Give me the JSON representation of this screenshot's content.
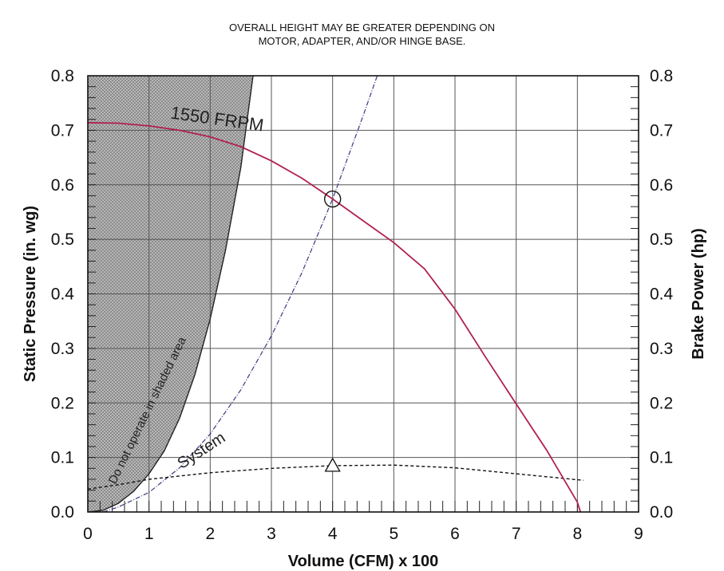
{
  "notes": [
    "OVERALL HEIGHT MAY BE GREATER DEPENDING ON",
    "MOTOR, ADAPTER, AND/OR HINGE BASE."
  ],
  "chart_data": {
    "type": "line",
    "xlabel": "Volume (CFM) x 100",
    "ylabel_left": "Static Pressure (in. wg)",
    "ylabel_right": "Brake Power (hp)",
    "xlim": [
      0,
      9
    ],
    "ylim": [
      0,
      0.8
    ],
    "x_ticks": [
      "0",
      "1",
      "2",
      "3",
      "4",
      "5",
      "6",
      "7",
      "8",
      "9"
    ],
    "y_ticks": [
      "0.0",
      "0.1",
      "0.2",
      "0.3",
      "0.4",
      "0.5",
      "0.6",
      "0.7",
      "0.8"
    ],
    "grid": true,
    "colors": {
      "fan_curve": "#b02050",
      "system": "#3a3a80",
      "power": "#111111",
      "shade": "#a8a8a8"
    },
    "series": [
      {
        "name": "1550 FRPM",
        "points": [
          [
            0,
            0.714
          ],
          [
            0.5,
            0.713
          ],
          [
            1,
            0.708
          ],
          [
            1.5,
            0.7
          ],
          [
            2,
            0.688
          ],
          [
            2.5,
            0.67
          ],
          [
            3,
            0.644
          ],
          [
            3.5,
            0.612
          ],
          [
            4,
            0.574
          ],
          [
            4.5,
            0.534
          ],
          [
            5,
            0.494
          ],
          [
            5.5,
            0.446
          ],
          [
            6,
            0.372
          ],
          [
            6.5,
            0.284
          ],
          [
            7,
            0.198
          ],
          [
            7.5,
            0.113
          ],
          [
            8,
            0.018
          ],
          [
            8.05,
            0
          ]
        ]
      },
      {
        "name": "System",
        "points": [
          [
            0.25,
            0
          ],
          [
            0.5,
            0.009
          ],
          [
            1,
            0.036
          ],
          [
            1.5,
            0.081
          ],
          [
            2,
            0.143
          ],
          [
            2.5,
            0.224
          ],
          [
            3,
            0.323
          ],
          [
            3.5,
            0.439
          ],
          [
            4,
            0.574
          ],
          [
            4.5,
            0.727
          ],
          [
            4.73,
            0.8
          ]
        ]
      },
      {
        "name": "Brake Power",
        "points": [
          [
            0,
            0.042
          ],
          [
            0.5,
            0.05
          ],
          [
            1,
            0.06
          ],
          [
            2,
            0.072
          ],
          [
            3,
            0.08
          ],
          [
            4,
            0.085
          ],
          [
            5,
            0.086
          ],
          [
            6,
            0.081
          ],
          [
            7,
            0.07
          ],
          [
            8.1,
            0.058
          ]
        ]
      },
      {
        "name": "Do not operate boundary",
        "points": [
          [
            0,
            0
          ],
          [
            0.25,
            0.003
          ],
          [
            0.5,
            0.016
          ],
          [
            0.75,
            0.038
          ],
          [
            1,
            0.07
          ],
          [
            1.25,
            0.112
          ],
          [
            1.5,
            0.172
          ],
          [
            1.75,
            0.252
          ],
          [
            2,
            0.354
          ],
          [
            2.25,
            0.48
          ],
          [
            2.5,
            0.632
          ],
          [
            2.7,
            0.8
          ]
        ]
      }
    ],
    "annotations": [
      {
        "text": "1550 FRPM",
        "x": 2.1,
        "y": 0.71
      },
      {
        "text": "System",
        "x": 1.9,
        "y": 0.105
      },
      {
        "text": "Do not operate in shaded area",
        "x": 1.55,
        "y": 0.1
      }
    ],
    "operating_point": {
      "x": 4,
      "y": 0.574,
      "marker": "circle"
    },
    "power_point": {
      "x": 4,
      "y": 0.085,
      "marker": "triangle"
    }
  }
}
